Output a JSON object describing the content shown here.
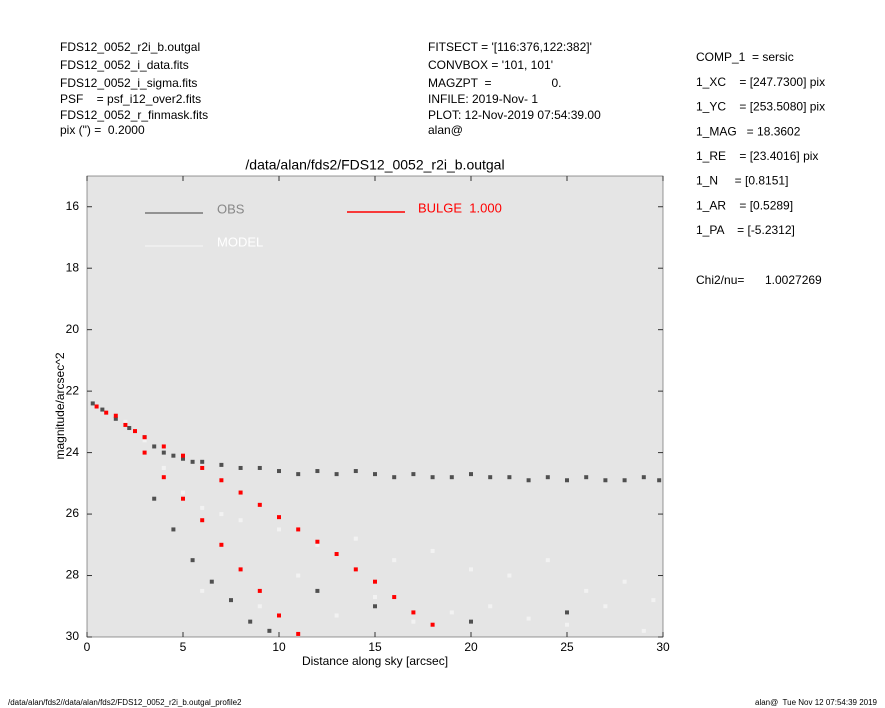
{
  "header": {
    "left": [
      "FDS12_0052_r2i_b.outgal",
      "FDS12_0052_i_data.fits",
      "FDS12_0052_i_sigma.fits",
      "PSF    = psf_i12_over2.fits",
      "FDS12_0052_r_finmask.fits",
      "pix (\") =  0.2000"
    ],
    "center": [
      "FITSECT = '[116:376,122:382]'",
      "CONVBOX = '101, 101'",
      "MAGZPT  =                  0.",
      "INFILE: 2019-Nov- 1",
      "PLOT: 12-Nov-2019 07:54:39.00",
      "alan@"
    ],
    "right": [
      "COMP_1  = sersic",
      "1_XC    = [247.7300] pix",
      "1_YC    = [253.5080] pix",
      "1_MAG   = 18.3602",
      "1_RE    = [23.4016] pix",
      "1_N     = [0.8151]",
      "1_AR    = [0.5289]",
      "1_PA    = [-5.2312]"
    ],
    "chi2_label": "Chi2/nu=",
    "chi2_value": "1.0027269"
  },
  "footer": {
    "left": "/data/alan/fds2//data/alan/fds2/FDS12_0052_r2i_b.outgal_profile2",
    "right": "alan@  Tue Nov 12 07:54:39 2019"
  },
  "chart_data": {
    "type": "scatter",
    "title": "/data/alan/fds2/FDS12_0052_r2i_b.outgal",
    "x_label": "Distance along sky [arcsec]",
    "y_label": "magnitude/arcsec^2",
    "xlim": [
      0,
      30
    ],
    "ylim": [
      30,
      15
    ],
    "xticks": [
      0,
      5,
      10,
      15,
      20,
      25,
      30
    ],
    "yticks": [
      16,
      18,
      20,
      22,
      24,
      26,
      28,
      30
    ],
    "series": [
      {
        "name": "OBS",
        "color": "#505050",
        "x": [
          0.3,
          0.8,
          1.5,
          2.2,
          3.0,
          3.5,
          4.0,
          4.5,
          5.0,
          5.5,
          6.0,
          7.0,
          8.0,
          9.0,
          10.0,
          11.0,
          12.0,
          13.0,
          14.0,
          15.0,
          16.0,
          17.0,
          18.0,
          19.0,
          20.0,
          21.0,
          22.0,
          23.0,
          24.0,
          25.0,
          26.0,
          27.0,
          28.0,
          29.0,
          29.8,
          3.5,
          4.5,
          5.5,
          6.5,
          7.5,
          8.5,
          9.5,
          12,
          15,
          20,
          25
        ],
        "values": [
          22.4,
          22.6,
          22.9,
          23.2,
          23.5,
          23.8,
          24.0,
          24.1,
          24.2,
          24.3,
          24.3,
          24.4,
          24.5,
          24.5,
          24.6,
          24.7,
          24.6,
          24.7,
          24.6,
          24.7,
          24.8,
          24.7,
          24.8,
          24.8,
          24.7,
          24.8,
          24.8,
          24.9,
          24.8,
          24.9,
          24.8,
          24.9,
          24.9,
          24.8,
          24.9,
          25.5,
          26.5,
          27.5,
          28.2,
          28.8,
          29.5,
          29.8,
          28.5,
          29.0,
          29.5,
          29.2
        ]
      },
      {
        "name": "MODEL",
        "color": "#f2f2f2",
        "x": [
          2,
          3,
          4,
          5,
          6,
          7,
          8,
          10,
          12,
          14,
          16,
          18,
          20,
          22,
          24,
          26,
          28,
          29.5,
          6,
          9,
          13,
          17,
          21,
          25,
          29,
          11,
          15,
          19,
          23,
          27
        ],
        "values": [
          23.0,
          23.6,
          24.5,
          25.3,
          25.8,
          26.0,
          26.2,
          26.5,
          27.0,
          26.8,
          27.5,
          27.2,
          27.8,
          28.0,
          27.5,
          28.5,
          28.2,
          28.8,
          28.5,
          29.0,
          29.3,
          29.5,
          29.0,
          29.6,
          29.8,
          28.0,
          28.7,
          29.2,
          29.4,
          29.0
        ]
      },
      {
        "name": "BULGE  1.000",
        "color": "#ff0000",
        "x": [
          0.5,
          1,
          1.5,
          2,
          2.5,
          3,
          3,
          4,
          4,
          5,
          5,
          6,
          6,
          7,
          7,
          8,
          8,
          9,
          9,
          10,
          10,
          11,
          11,
          12,
          13,
          14,
          15,
          16,
          17,
          18
        ],
        "values": [
          22.5,
          22.7,
          22.8,
          23.1,
          23.3,
          23.5,
          24,
          23.8,
          24.8,
          24.1,
          25.5,
          24.5,
          26.2,
          24.9,
          27,
          25.3,
          27.8,
          25.7,
          28.5,
          26.1,
          29.3,
          26.5,
          29.9,
          26.9,
          27.3,
          27.8,
          28.2,
          28.7,
          29.2,
          29.6
        ]
      }
    ]
  }
}
